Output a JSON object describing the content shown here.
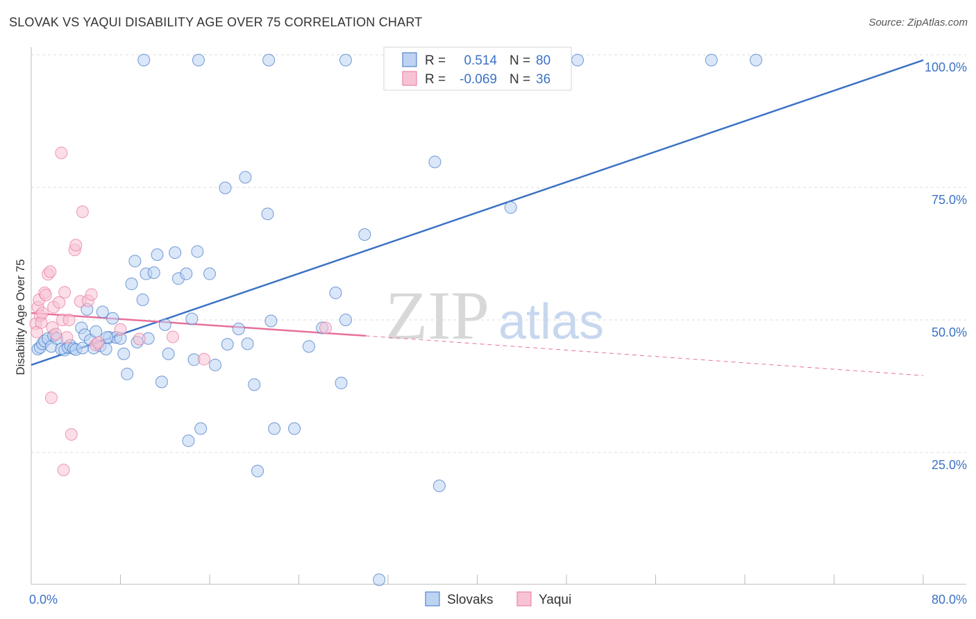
{
  "title": "SLOVAK VS YAQUI DISABILITY AGE OVER 75 CORRELATION CHART",
  "source": "Source: ZipAtlas.com",
  "watermark": {
    "zip": "ZIP",
    "atlas": "atlas"
  },
  "colors": {
    "blue": "#3b72c5",
    "blue_fill": "#bcd3f2",
    "pink": "#e8709b",
    "pink_fill": "#f7c3d4",
    "grid": "#dddddd"
  },
  "legend": {
    "rows": [
      {
        "r_label": "R =",
        "r_value": "0.514",
        "n_label": "N =",
        "n_value": "80",
        "series": "blue"
      },
      {
        "r_label": "R =",
        "r_value": "-0.069",
        "n_label": "N =",
        "n_value": "36",
        "series": "pink"
      }
    ]
  },
  "bottom_legend": [
    "Slovaks",
    "Yaqui"
  ],
  "chart_data": {
    "type": "scatter",
    "title": "SLOVAK VS YAQUI DISABILITY AGE OVER 75 CORRELATION CHART",
    "xlabel": "",
    "ylabel": "Disability Age Over 75",
    "xlim": [
      0,
      80
    ],
    "ylim": [
      0,
      105
    ],
    "x_tick_labels": [
      {
        "value": 0,
        "label": "0.0%"
      },
      {
        "value": 80,
        "label": "80.0%"
      }
    ],
    "y_tick_labels": [
      {
        "value": 25,
        "label": "25.0%"
      },
      {
        "value": 50,
        "label": "50.0%"
      },
      {
        "value": 75,
        "label": "75.0%"
      },
      {
        "value": 100,
        "label": "100.0%"
      }
    ],
    "series": [
      {
        "name": "Slovaks",
        "color": "#3b72c5",
        "points": [
          [
            0.6,
            44.5
          ],
          [
            0.8,
            44.8
          ],
          [
            1.0,
            45.5
          ],
          [
            1.2,
            46
          ],
          [
            1.5,
            46.5
          ],
          [
            1.8,
            45
          ],
          [
            2.0,
            47
          ],
          [
            2.3,
            46.5
          ],
          [
            2.7,
            44.5
          ],
          [
            3.0,
            44.3
          ],
          [
            3.3,
            44.8
          ],
          [
            3.5,
            45.2
          ],
          [
            3.8,
            44.6
          ],
          [
            4.0,
            44.4
          ],
          [
            4.5,
            48.5
          ],
          [
            4.8,
            47.2
          ],
          [
            5.0,
            52
          ],
          [
            5.3,
            46.2
          ],
          [
            5.6,
            44.7
          ],
          [
            5.8,
            47.8
          ],
          [
            6.2,
            45.1
          ],
          [
            6.4,
            51.5
          ],
          [
            6.7,
            44.5
          ],
          [
            7.0,
            46.7
          ],
          [
            7.3,
            50.3
          ],
          [
            7.6,
            46.7
          ],
          [
            8.0,
            46.5
          ],
          [
            8.3,
            43.6
          ],
          [
            8.6,
            39.8
          ],
          [
            9.0,
            56.8
          ],
          [
            9.3,
            61.1
          ],
          [
            9.5,
            45.8
          ],
          [
            10.0,
            53.8
          ],
          [
            10.5,
            46.5
          ],
          [
            10.3,
            58.7
          ],
          [
            11.0,
            58.9
          ],
          [
            11.3,
            62.3
          ],
          [
            11.7,
            38.3
          ],
          [
            12.0,
            49.1
          ],
          [
            12.3,
            43.6
          ],
          [
            12.9,
            62.7
          ],
          [
            13.2,
            57.8
          ],
          [
            13.9,
            58.7
          ],
          [
            14.1,
            27.2
          ],
          [
            14.4,
            50.2
          ],
          [
            14.6,
            42.5
          ],
          [
            14.9,
            62.9
          ],
          [
            15.2,
            29.5
          ],
          [
            16.0,
            58.7
          ],
          [
            16.5,
            41.5
          ],
          [
            17.4,
            74.9
          ],
          [
            17.6,
            45.4
          ],
          [
            18.6,
            48.3
          ],
          [
            19.2,
            76.9
          ],
          [
            19.4,
            45.5
          ],
          [
            20.0,
            37.8
          ],
          [
            20.3,
            21.5
          ],
          [
            21.2,
            70.0
          ],
          [
            21.5,
            49.8
          ],
          [
            21.8,
            29.5
          ],
          [
            23.6,
            29.5
          ],
          [
            24.9,
            45
          ],
          [
            26.1,
            48.5
          ],
          [
            27.3,
            55.1
          ],
          [
            27.8,
            38.1
          ],
          [
            28.2,
            50
          ],
          [
            29.9,
            66.1
          ],
          [
            31.2,
            1
          ],
          [
            36.2,
            79.8
          ],
          [
            36.6,
            18.7
          ],
          [
            43.0,
            71.2
          ],
          [
            10.1,
            99.0
          ],
          [
            15.0,
            99.0
          ],
          [
            21.3,
            99.0
          ],
          [
            28.2,
            99.0
          ],
          [
            49.0,
            99.0
          ],
          [
            61.0,
            99.0
          ],
          [
            65.0,
            99.0
          ],
          [
            6.8,
            46.7
          ],
          [
            4.6,
            44.7
          ]
        ]
      },
      {
        "name": "Yaqui",
        "color": "#e8709b",
        "points": [
          [
            0.4,
            49.3
          ],
          [
            0.5,
            47.7
          ],
          [
            0.6,
            52.4
          ],
          [
            0.7,
            53.8
          ],
          [
            0.8,
            50.8
          ],
          [
            0.9,
            49.5
          ],
          [
            1.0,
            51.3
          ],
          [
            1.2,
            55.1
          ],
          [
            1.3,
            54.7
          ],
          [
            1.5,
            58.6
          ],
          [
            1.7,
            59.1
          ],
          [
            1.9,
            48.6
          ],
          [
            2.0,
            52.4
          ],
          [
            2.2,
            47.3
          ],
          [
            2.5,
            53.3
          ],
          [
            2.7,
            81.5
          ],
          [
            2.8,
            50.0
          ],
          [
            3.0,
            55.2
          ],
          [
            3.2,
            46.7
          ],
          [
            3.4,
            50.0
          ],
          [
            3.9,
            63.2
          ],
          [
            4.0,
            64.1
          ],
          [
            4.4,
            53.5
          ],
          [
            4.6,
            70.4
          ],
          [
            5.1,
            53.6
          ],
          [
            5.4,
            54.8
          ],
          [
            5.8,
            45.3
          ],
          [
            6.0,
            45.7
          ],
          [
            8.0,
            48.2
          ],
          [
            9.7,
            46.4
          ],
          [
            12.7,
            46.8
          ],
          [
            15.5,
            42.6
          ],
          [
            26.4,
            48.5
          ],
          [
            1.8,
            35.3
          ],
          [
            3.6,
            28.4
          ],
          [
            2.9,
            21.7
          ]
        ]
      }
    ],
    "trend_lines": [
      {
        "series": "Slovaks",
        "x": [
          0,
          80
        ],
        "y": [
          41.5,
          99.0
        ],
        "style": "solid"
      },
      {
        "series": "Yaqui",
        "x": [
          0,
          30
        ],
        "y": [
          51.3,
          47.0
        ],
        "style": "solid"
      },
      {
        "series": "Yaqui",
        "x": [
          30,
          80
        ],
        "y": [
          47.0,
          39.5
        ],
        "style": "dashed"
      }
    ],
    "grid": true,
    "legend_position": "top-center"
  }
}
